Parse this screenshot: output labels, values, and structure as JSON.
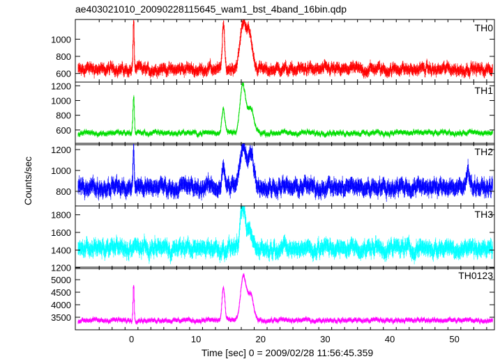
{
  "title": "ae403021010_20090228115645_wam1_bst_4band_16bin.qdp",
  "xlabel": "Time [sec] 0 = 2009/02/28 11:56:45.359",
  "ylabel": "Counts/sec",
  "chart_data": {
    "type": "line",
    "title": "ae403021010_20090228115645_wam1_bst_4band_16bin.qdp",
    "xlabel": "Time [sec] 0 = 2009/02/28 11:56:45.359",
    "ylabel": "Counts/sec",
    "xlim": [
      -8.7,
      56.2
    ],
    "x_ticks": [
      0,
      10,
      20,
      30,
      40,
      50
    ],
    "grid": false,
    "panels": [
      {
        "name": "TH0",
        "color": "#ff0000",
        "ylim": [
          500,
          1230
        ],
        "yticks": [
          600,
          800,
          1000
        ],
        "baseline": 650,
        "noise": 40,
        "err": 50,
        "features": [
          {
            "t": 0.3,
            "peak": 1180,
            "width": 0.12
          },
          {
            "t": 14.2,
            "peak": 1180,
            "width": 0.25
          },
          {
            "t": 17.3,
            "peak": 1200,
            "width": 0.7
          },
          {
            "t": 18.3,
            "peak": 1000,
            "width": 0.6
          }
        ]
      },
      {
        "name": "TH1",
        "color": "#00dd00",
        "ylim": [
          400,
          1250
        ],
        "yticks": [
          600,
          800,
          1000,
          1200
        ],
        "baseline": 560,
        "noise": 25,
        "err": 25,
        "features": [
          {
            "t": 0.3,
            "peak": 1050,
            "width": 0.15
          },
          {
            "t": 14.2,
            "peak": 900,
            "width": 0.35
          },
          {
            "t": 17.2,
            "peak": 1200,
            "width": 0.6
          },
          {
            "t": 18.4,
            "peak": 880,
            "width": 0.7
          }
        ]
      },
      {
        "name": "TH2",
        "color": "#0000ff",
        "ylim": [
          660,
          1260
        ],
        "yticks": [
          800,
          1000,
          1200
        ],
        "baseline": 840,
        "noise": 45,
        "err": 60,
        "features": [
          {
            "t": 0.3,
            "peak": 1200,
            "width": 0.12
          },
          {
            "t": 14.2,
            "peak": 1020,
            "width": 0.35
          },
          {
            "t": 17.3,
            "peak": 1230,
            "width": 0.7
          },
          {
            "t": 18.5,
            "peak": 1150,
            "width": 0.6
          },
          {
            "t": 52.1,
            "peak": 1030,
            "width": 0.3
          }
        ]
      },
      {
        "name": "TH3",
        "color": "#00ffff",
        "ylim": [
          1190,
          1900
        ],
        "yticks": [
          1200,
          1400,
          1600,
          1800
        ],
        "baseline": 1420,
        "noise": 55,
        "err": 70,
        "features": [
          {
            "t": 17.2,
            "peak": 1880,
            "width": 0.5
          },
          {
            "t": 18.2,
            "peak": 1620,
            "width": 0.6
          }
        ]
      },
      {
        "name": "TH0123",
        "color": "#ff00ff",
        "ylim": [
          3000,
          5500
        ],
        "yticks": [
          3500,
          4000,
          4500,
          5000
        ],
        "baseline": 3380,
        "noise": 60,
        "err": 70,
        "features": [
          {
            "t": 0.3,
            "peak": 4800,
            "width": 0.12
          },
          {
            "t": 14.2,
            "peak": 4700,
            "width": 0.3
          },
          {
            "t": 17.3,
            "peak": 5150,
            "width": 0.6
          },
          {
            "t": 18.4,
            "peak": 4400,
            "width": 0.6
          }
        ]
      }
    ]
  }
}
